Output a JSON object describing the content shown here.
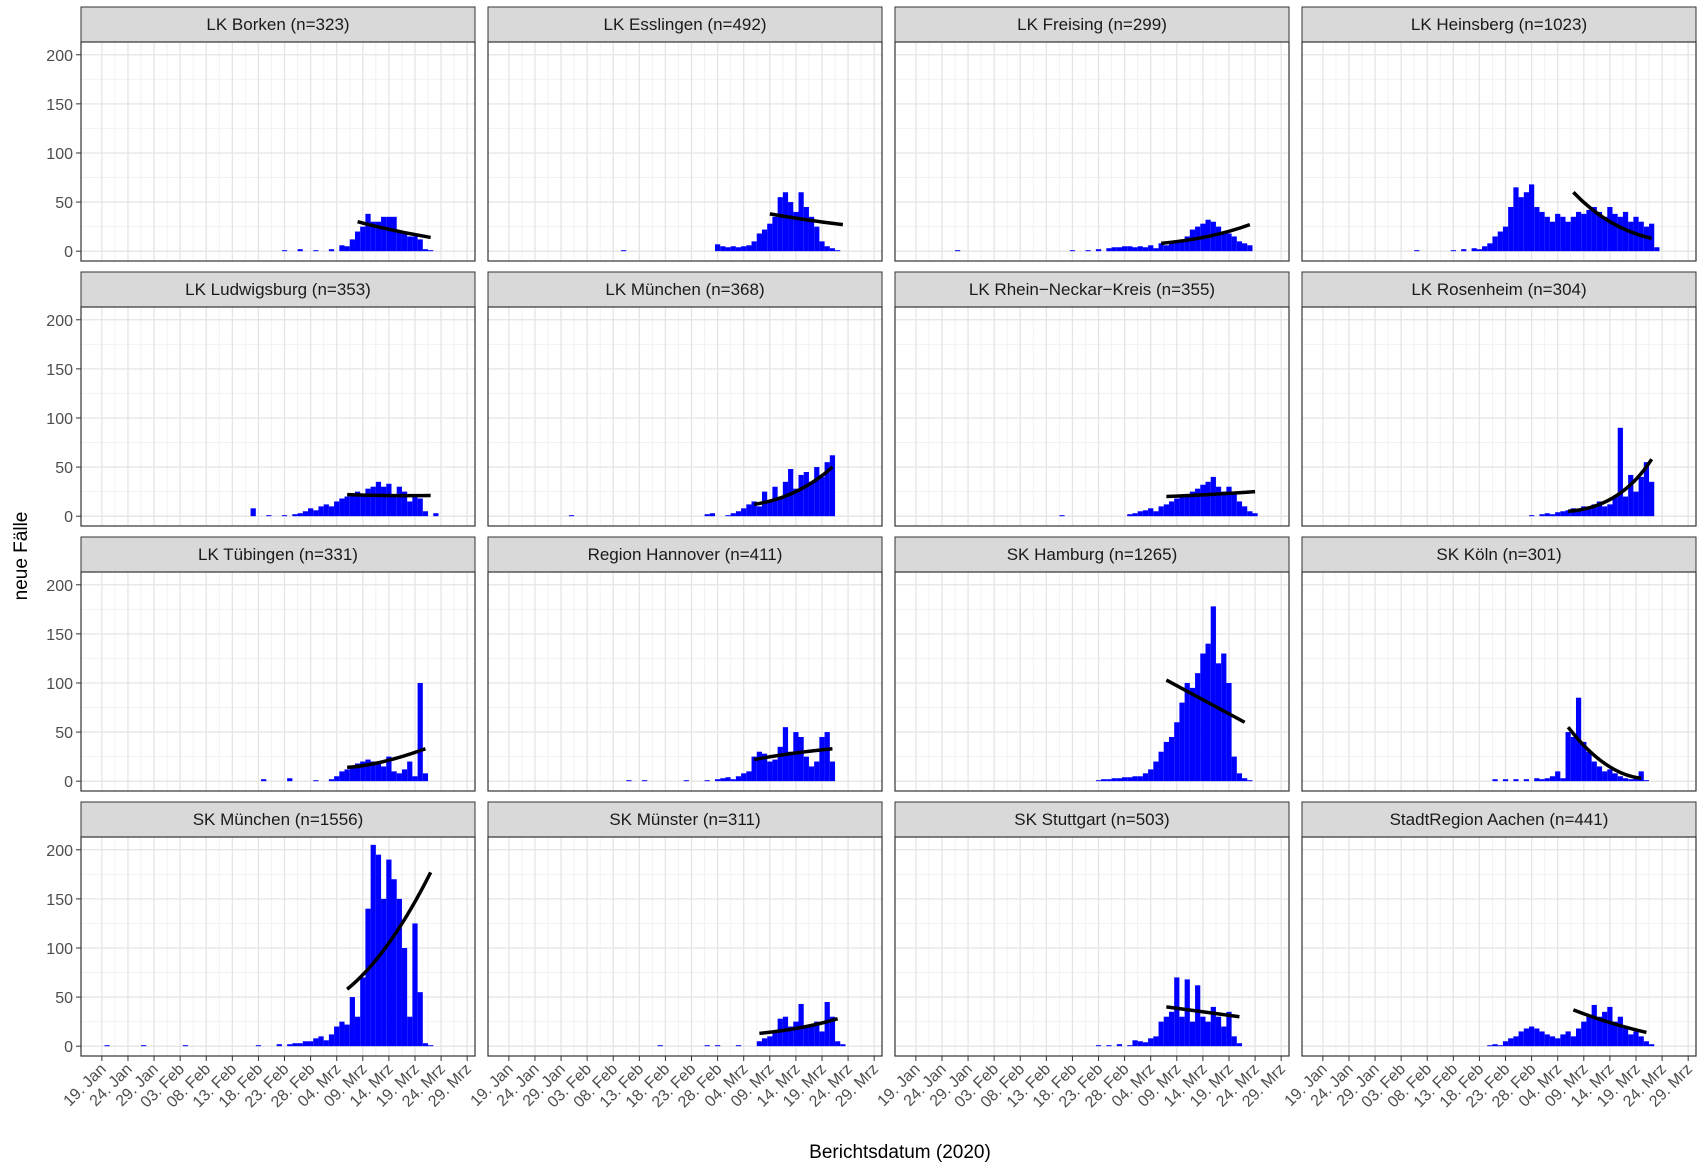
{
  "xlabel": "Berichtsdatum (2020)",
  "ylabel": "neue Fälle",
  "bar_color": "#0000ff",
  "fit_color": "#000000",
  "grid": true,
  "xlim": [
    15,
    90.5
  ],
  "ylim": [
    -10,
    213
  ],
  "xticks": [
    {
      "value": 19,
      "label": "19. Jan"
    },
    {
      "value": 24,
      "label": "24. Jan"
    },
    {
      "value": 29,
      "label": "29. Jan"
    },
    {
      "value": 34,
      "label": "03. Feb"
    },
    {
      "value": 39,
      "label": "08. Feb"
    },
    {
      "value": 44,
      "label": "13. Feb"
    },
    {
      "value": 49,
      "label": "18. Feb"
    },
    {
      "value": 54,
      "label": "23. Feb"
    },
    {
      "value": 59,
      "label": "28. Feb"
    },
    {
      "value": 64,
      "label": "04. Mrz"
    },
    {
      "value": 69,
      "label": "09. Mrz"
    },
    {
      "value": 74,
      "label": "14. Mrz"
    },
    {
      "value": 79,
      "label": "19. Mrz"
    },
    {
      "value": 84,
      "label": "24. Mrz"
    },
    {
      "value": 89,
      "label": "29. Mrz"
    }
  ],
  "yticks": [
    0,
    50,
    100,
    150,
    200
  ],
  "chart_data": [
    {
      "type": "bar",
      "title": "LK Borken (n=323)",
      "x": [
        54,
        57,
        60,
        63,
        65,
        66,
        67,
        68,
        69,
        70,
        71,
        72,
        73,
        74,
        75,
        76,
        77,
        78,
        79,
        80,
        81,
        82
      ],
      "values": [
        1,
        2,
        1,
        2,
        6,
        5,
        12,
        20,
        25,
        38,
        30,
        30,
        35,
        35,
        35,
        20,
        20,
        15,
        15,
        12,
        2,
        1
      ],
      "fit": {
        "x": [
          68,
          75,
          82
        ],
        "values": [
          30,
          21,
          14
        ]
      }
    },
    {
      "type": "bar",
      "title": "LK Esslingen (n=492)",
      "x": [
        41,
        59,
        60,
        61,
        62,
        63,
        64,
        65,
        66,
        67,
        68,
        69,
        70,
        71,
        72,
        73,
        74,
        75,
        76,
        77,
        78,
        79,
        80,
        81,
        82
      ],
      "values": [
        1,
        7,
        5,
        4,
        5,
        4,
        5,
        6,
        10,
        18,
        22,
        28,
        35,
        55,
        60,
        50,
        40,
        60,
        45,
        35,
        25,
        10,
        5,
        3,
        1
      ],
      "fit": {
        "x": [
          69,
          76,
          83
        ],
        "values": [
          38,
          32,
          27
        ]
      }
    },
    {
      "type": "bar",
      "title": "LK Freising (n=299)",
      "x": [
        27,
        49,
        52,
        54,
        56,
        57,
        58,
        59,
        60,
        61,
        62,
        63,
        64,
        65,
        66,
        67,
        68,
        69,
        70,
        71,
        72,
        73,
        74,
        75,
        76,
        77,
        78,
        79,
        80,
        81,
        82,
        83
      ],
      "values": [
        1,
        1,
        1,
        2,
        3,
        4,
        4,
        5,
        5,
        4,
        5,
        4,
        6,
        3,
        8,
        6,
        8,
        10,
        12,
        15,
        22,
        25,
        28,
        32,
        30,
        25,
        20,
        18,
        15,
        10,
        8,
        6
      ],
      "fit": {
        "x": [
          66,
          75,
          83
        ],
        "values": [
          8,
          15,
          27
        ]
      }
    },
    {
      "type": "bar",
      "title": "LK Heinsberg (n=1023)",
      "x": [
        37,
        44,
        46,
        48,
        49,
        50,
        51,
        52,
        53,
        54,
        55,
        56,
        57,
        58,
        59,
        60,
        61,
        62,
        63,
        64,
        65,
        66,
        67,
        68,
        69,
        70,
        71,
        72,
        73,
        74,
        75,
        76,
        77,
        78,
        79,
        80,
        81,
        82,
        83
      ],
      "values": [
        1,
        1,
        2,
        3,
        2,
        5,
        8,
        15,
        20,
        25,
        45,
        65,
        55,
        60,
        68,
        45,
        40,
        35,
        30,
        38,
        35,
        30,
        35,
        40,
        38,
        42,
        45,
        40,
        35,
        45,
        38,
        35,
        40,
        30,
        35,
        30,
        25,
        28,
        4
      ],
      "fit": {
        "x": [
          67,
          74,
          82
        ],
        "values": [
          60,
          30,
          13
        ]
      }
    },
    {
      "type": "bar",
      "title": "LK Ludwigsburg (n=353)",
      "x": [
        48,
        51,
        54,
        56,
        57,
        58,
        59,
        60,
        61,
        62,
        63,
        64,
        65,
        66,
        67,
        68,
        69,
        70,
        71,
        72,
        73,
        74,
        75,
        76,
        77,
        78,
        79,
        80,
        81,
        83
      ],
      "values": [
        8,
        1,
        1,
        2,
        3,
        5,
        8,
        6,
        10,
        12,
        10,
        15,
        18,
        20,
        22,
        25,
        20,
        28,
        30,
        35,
        30,
        33,
        20,
        30,
        25,
        15,
        20,
        18,
        5,
        3
      ],
      "fit": {
        "x": [
          66,
          74,
          82
        ],
        "values": [
          22,
          21,
          21
        ]
      }
    },
    {
      "type": "bar",
      "title": "LK München (n=368)",
      "x": [
        31,
        57,
        58,
        61,
        62,
        63,
        64,
        65,
        66,
        67,
        68,
        69,
        70,
        71,
        72,
        73,
        74,
        75,
        76,
        77,
        78,
        79,
        80,
        81
      ],
      "values": [
        1,
        2,
        3,
        1,
        3,
        5,
        8,
        12,
        15,
        10,
        25,
        15,
        30,
        18,
        35,
        48,
        28,
        42,
        45,
        35,
        50,
        40,
        55,
        62
      ],
      "fit": {
        "x": [
          66,
          74,
          81
        ],
        "values": [
          12,
          25,
          50
        ]
      }
    },
    {
      "type": "bar",
      "title": "LK Rhein−Neckar−Kreis (n=355)",
      "x": [
        47,
        60,
        61,
        62,
        63,
        64,
        65,
        66,
        67,
        68,
        69,
        70,
        71,
        72,
        73,
        74,
        75,
        76,
        77,
        78,
        79,
        80,
        81,
        82,
        83,
        84
      ],
      "values": [
        1,
        2,
        3,
        5,
        6,
        8,
        5,
        10,
        12,
        15,
        18,
        20,
        22,
        25,
        28,
        32,
        35,
        40,
        30,
        25,
        30,
        22,
        15,
        10,
        5,
        3
      ],
      "fit": {
        "x": [
          67,
          75,
          84
        ],
        "values": [
          20,
          22,
          25
        ]
      }
    },
    {
      "type": "bar",
      "title": "LK Rosenheim (n=304)",
      "x": [
        59,
        61,
        62,
        63,
        64,
        65,
        66,
        67,
        68,
        69,
        70,
        71,
        72,
        73,
        74,
        75,
        76,
        77,
        78,
        79,
        80,
        81,
        82
      ],
      "values": [
        1,
        2,
        3,
        2,
        4,
        5,
        6,
        8,
        6,
        10,
        8,
        12,
        15,
        10,
        12,
        20,
        90,
        20,
        42,
        25,
        40,
        55,
        35
      ],
      "fit": {
        "x": [
          66,
          75,
          82
        ],
        "values": [
          5,
          20,
          58
        ]
      }
    },
    {
      "type": "bar",
      "title": "LK Tübingen (n=331)",
      "x": [
        50,
        55,
        60,
        63,
        64,
        65,
        66,
        67,
        68,
        69,
        70,
        71,
        72,
        73,
        74,
        75,
        76,
        77,
        78,
        79,
        80,
        81
      ],
      "values": [
        2,
        3,
        1,
        2,
        5,
        10,
        12,
        15,
        18,
        20,
        22,
        20,
        18,
        15,
        25,
        10,
        8,
        12,
        20,
        5,
        100,
        8
      ],
      "fit": {
        "x": [
          66,
          73,
          81
        ],
        "values": [
          14,
          20,
          33
        ]
      }
    },
    {
      "type": "bar",
      "title": "Region Hannover (n=411)",
      "x": [
        42,
        45,
        53,
        57,
        59,
        60,
        61,
        62,
        63,
        64,
        65,
        66,
        67,
        68,
        69,
        70,
        71,
        72,
        73,
        74,
        75,
        76,
        77,
        78,
        79,
        80,
        81
      ],
      "values": [
        1,
        1,
        1,
        1,
        2,
        3,
        4,
        2,
        5,
        8,
        10,
        25,
        30,
        28,
        20,
        22,
        35,
        55,
        30,
        50,
        45,
        25,
        15,
        20,
        45,
        50,
        20
      ],
      "fit": {
        "x": [
          66,
          73,
          81
        ],
        "values": [
          22,
          28,
          33
        ]
      }
    },
    {
      "type": "bar",
      "title": "SK Hamburg (n=1265)",
      "x": [
        54,
        55,
        56,
        57,
        58,
        59,
        60,
        61,
        62,
        63,
        64,
        65,
        66,
        67,
        68,
        69,
        70,
        71,
        72,
        73,
        74,
        75,
        76,
        77,
        78,
        79,
        80,
        81,
        82,
        83
      ],
      "values": [
        1,
        2,
        2,
        3,
        3,
        4,
        4,
        5,
        5,
        8,
        12,
        20,
        30,
        40,
        45,
        60,
        80,
        100,
        95,
        110,
        130,
        140,
        178,
        120,
        130,
        100,
        25,
        8,
        3,
        1
      ],
      "fit": {
        "x": [
          67,
          75,
          82
        ],
        "values": [
          103,
          80,
          60
        ]
      }
    },
    {
      "type": "bar",
      "title": "SK Köln (n=301)",
      "x": [
        52,
        54,
        56,
        58,
        60,
        61,
        62,
        63,
        64,
        65,
        66,
        67,
        68,
        69,
        70,
        71,
        72,
        73,
        74,
        75,
        76,
        77,
        78,
        79,
        80,
        81
      ],
      "values": [
        2,
        2,
        2,
        2,
        3,
        2,
        3,
        5,
        10,
        3,
        50,
        45,
        85,
        40,
        30,
        20,
        15,
        10,
        12,
        8,
        5,
        3,
        2,
        3,
        10,
        1
      ],
      "fit": {
        "x": [
          66,
          73,
          80
        ],
        "values": [
          55,
          18,
          3
        ]
      }
    },
    {
      "type": "bar",
      "title": "SK München (n=1556)",
      "x": [
        20,
        27,
        35,
        49,
        53,
        55,
        56,
        57,
        58,
        59,
        60,
        61,
        62,
        63,
        64,
        65,
        66,
        67,
        68,
        69,
        70,
        71,
        72,
        73,
        74,
        75,
        76,
        77,
        78,
        79,
        80,
        81,
        82
      ],
      "values": [
        1,
        1,
        1,
        1,
        2,
        2,
        3,
        3,
        5,
        5,
        8,
        10,
        6,
        12,
        20,
        25,
        22,
        50,
        30,
        70,
        140,
        205,
        195,
        150,
        190,
        170,
        150,
        100,
        30,
        125,
        55,
        3,
        1
      ],
      "fit": {
        "x": [
          66,
          74,
          82
        ],
        "values": [
          58,
          105,
          177
        ]
      }
    },
    {
      "type": "bar",
      "title": "SK Münster (n=311)",
      "x": [
        48,
        57,
        59,
        63,
        67,
        68,
        69,
        70,
        71,
        72,
        73,
        74,
        75,
        76,
        77,
        78,
        79,
        80,
        81,
        82,
        83
      ],
      "values": [
        1,
        1,
        1,
        1,
        5,
        8,
        10,
        15,
        28,
        30,
        20,
        25,
        43,
        20,
        22,
        25,
        15,
        45,
        30,
        5,
        2
      ],
      "fit": {
        "x": [
          67,
          75,
          82
        ],
        "values": [
          13,
          19,
          28
        ]
      }
    },
    {
      "type": "bar",
      "title": "SK Stuttgart (n=503)",
      "x": [
        54,
        56,
        58,
        60,
        61,
        62,
        63,
        64,
        65,
        66,
        67,
        68,
        69,
        70,
        71,
        72,
        73,
        74,
        75,
        76,
        77,
        78,
        79,
        80,
        81
      ],
      "values": [
        1,
        1,
        2,
        1,
        6,
        5,
        4,
        8,
        10,
        25,
        30,
        35,
        70,
        30,
        68,
        25,
        62,
        30,
        25,
        40,
        30,
        20,
        35,
        10,
        3
      ],
      "fit": {
        "x": [
          67,
          74,
          81
        ],
        "values": [
          40,
          35,
          30
        ]
      }
    },
    {
      "type": "bar",
      "title": "StadtRegion Aachen (n=441)",
      "x": [
        51,
        52,
        53,
        54,
        55,
        56,
        57,
        58,
        59,
        60,
        61,
        62,
        63,
        64,
        65,
        66,
        67,
        68,
        69,
        70,
        71,
        72,
        73,
        74,
        75,
        76,
        77,
        78,
        79,
        80,
        81,
        82
      ],
      "values": [
        1,
        2,
        1,
        5,
        8,
        10,
        15,
        18,
        20,
        18,
        15,
        12,
        10,
        8,
        12,
        15,
        10,
        18,
        25,
        30,
        42,
        30,
        35,
        40,
        25,
        30,
        18,
        12,
        15,
        10,
        5,
        2
      ],
      "fit": {
        "x": [
          67,
          74,
          81
        ],
        "values": [
          37,
          24,
          14
        ]
      }
    }
  ]
}
